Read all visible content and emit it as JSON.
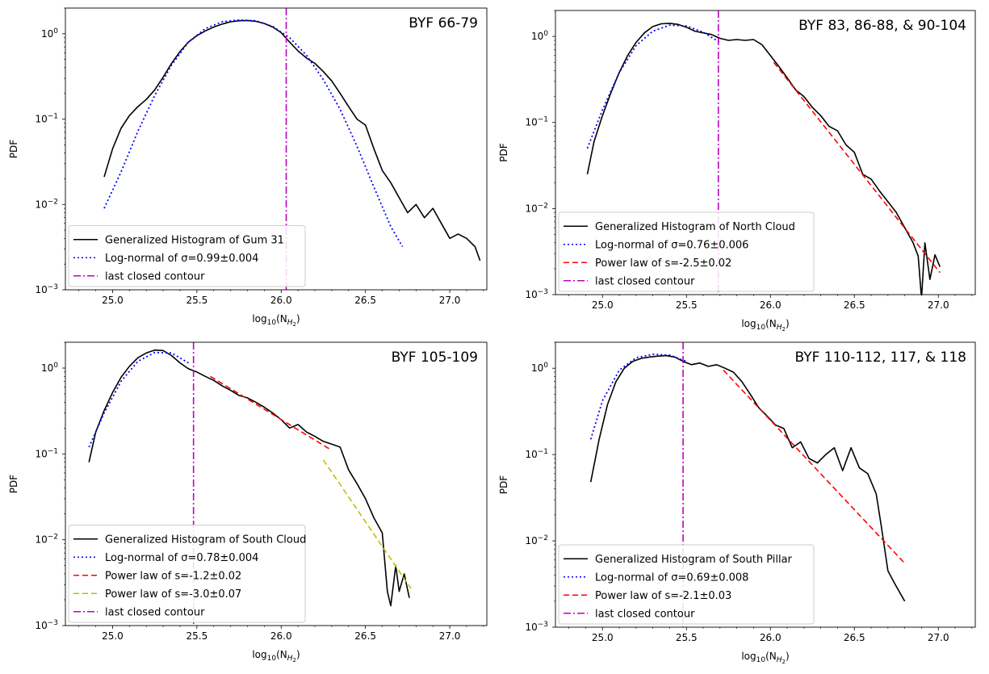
{
  "figure": {
    "colors": {
      "histogram": "#000000",
      "lognormal": "#0000ff",
      "powerlaw_red": "#ff0000",
      "powerlaw_yellow": "#bfbf00",
      "contour": "#bf00bf"
    }
  },
  "chart_data": [
    {
      "type": "line",
      "title": "BYF 66-79",
      "xlabel": "log10(NH2)",
      "ylabel": "PDF",
      "xlim": [
        24.72,
        27.22
      ],
      "ylim": [
        0.001,
        2.0
      ],
      "yscale": "log",
      "xticks": [
        25.0,
        25.5,
        26.0,
        26.5,
        27.0
      ],
      "xtick_labels": [
        "25.0",
        "25.5",
        "26.0",
        "26.5",
        "27.0"
      ],
      "yticks": [
        0.001,
        0.01,
        0.1,
        1
      ],
      "ytick_labels": [
        "10^-3",
        "10^-2",
        "10^-1",
        "10^0"
      ],
      "legend_position": "lower-left",
      "series": [
        {
          "name": "Generalized Histogram of Gum 31",
          "style": "solid",
          "color": "#000000",
          "x": [
            24.95,
            25.0,
            25.05,
            25.1,
            25.15,
            25.2,
            25.25,
            25.3,
            25.35,
            25.4,
            25.45,
            25.5,
            25.55,
            25.6,
            25.65,
            25.7,
            25.75,
            25.8,
            25.85,
            25.9,
            25.95,
            26.0,
            26.05,
            26.1,
            26.15,
            26.2,
            26.25,
            26.3,
            26.35,
            26.4,
            26.45,
            26.5,
            26.55,
            26.6,
            26.65,
            26.7,
            26.75,
            26.8,
            26.85,
            26.9,
            26.95,
            27.0,
            27.05,
            27.1,
            27.15,
            27.18
          ],
          "y": [
            0.021,
            0.045,
            0.078,
            0.11,
            0.14,
            0.17,
            0.22,
            0.31,
            0.45,
            0.62,
            0.8,
            0.95,
            1.08,
            1.2,
            1.3,
            1.38,
            1.42,
            1.43,
            1.4,
            1.32,
            1.2,
            1.03,
            0.8,
            0.63,
            0.52,
            0.45,
            0.36,
            0.28,
            0.2,
            0.14,
            0.1,
            0.085,
            0.045,
            0.025,
            0.018,
            0.012,
            0.008,
            0.01,
            0.007,
            0.009,
            0.006,
            0.004,
            0.0045,
            0.004,
            0.0032,
            0.0022
          ]
        },
        {
          "name": "Log-normal of σ=0.99±0.004",
          "style": "dotted",
          "color": "#0000ff",
          "x": [
            24.95,
            25.05,
            25.15,
            25.25,
            25.35,
            25.45,
            25.55,
            25.65,
            25.75,
            25.85,
            25.95,
            26.05,
            26.15,
            26.25,
            26.35,
            26.45,
            26.55,
            26.65,
            26.72
          ],
          "y": [
            0.009,
            0.024,
            0.072,
            0.19,
            0.43,
            0.8,
            1.15,
            1.38,
            1.45,
            1.42,
            1.22,
            0.9,
            0.56,
            0.29,
            0.13,
            0.048,
            0.016,
            0.0055,
            0.0032
          ]
        },
        {
          "name": "last closed contour",
          "style": "dashdot",
          "color": "#bf00bf",
          "x": [
            26.03,
            26.03
          ],
          "y": [
            0.001,
            2.0
          ]
        }
      ]
    },
    {
      "type": "line",
      "title": "BYF 83, 86-88, & 90-104",
      "xlabel": "log10(NH2)",
      "ylabel": "PDF",
      "xlim": [
        24.72,
        27.22
      ],
      "ylim": [
        0.001,
        2.0
      ],
      "yscale": "log",
      "xticks": [
        25.0,
        25.5,
        26.0,
        26.5,
        27.0
      ],
      "xtick_labels": [
        "25.0",
        "25.5",
        "26.0",
        "26.5",
        "27.0"
      ],
      "yticks": [
        0.001,
        0.01,
        0.1,
        1
      ],
      "ytick_labels": [
        "10^-3",
        "10^-2",
        "10^-1",
        "10^0"
      ],
      "legend_position": "lower-left",
      "series": [
        {
          "name": "Generalized Histogram of North Cloud",
          "style": "solid",
          "color": "#000000",
          "x": [
            24.91,
            24.95,
            25.0,
            25.05,
            25.1,
            25.15,
            25.2,
            25.25,
            25.3,
            25.35,
            25.4,
            25.45,
            25.5,
            25.55,
            25.6,
            25.65,
            25.7,
            25.75,
            25.8,
            25.85,
            25.9,
            25.95,
            26.0,
            26.05,
            26.1,
            26.15,
            26.2,
            26.25,
            26.3,
            26.35,
            26.4,
            26.45,
            26.5,
            26.55,
            26.6,
            26.65,
            26.7,
            26.75,
            26.8,
            26.85,
            26.88,
            26.9,
            26.92,
            26.95,
            26.98,
            27.01
          ],
          "y": [
            0.025,
            0.06,
            0.12,
            0.22,
            0.38,
            0.6,
            0.85,
            1.1,
            1.3,
            1.4,
            1.42,
            1.38,
            1.28,
            1.15,
            1.1,
            1.05,
            0.95,
            0.9,
            0.92,
            0.9,
            0.92,
            0.8,
            0.6,
            0.45,
            0.33,
            0.24,
            0.2,
            0.15,
            0.12,
            0.09,
            0.08,
            0.055,
            0.045,
            0.025,
            0.022,
            0.016,
            0.012,
            0.009,
            0.006,
            0.004,
            0.0028,
            0.0009,
            0.004,
            0.0015,
            0.0029,
            0.0021
          ]
        },
        {
          "name": "Log-normal of σ=0.76±0.006",
          "style": "dotted",
          "color": "#0000ff",
          "x": [
            24.91,
            25.0,
            25.1,
            25.2,
            25.3,
            25.4,
            25.5,
            25.6,
            25.7
          ],
          "y": [
            0.05,
            0.14,
            0.38,
            0.78,
            1.15,
            1.35,
            1.32,
            1.12,
            0.85
          ]
        },
        {
          "name": "Power law of s=-2.5±0.02",
          "style": "dashed",
          "color": "#ff0000",
          "x": [
            26.02,
            27.01
          ],
          "y": [
            0.5,
            0.0018
          ]
        },
        {
          "name": "last closed contour",
          "style": "dashdot",
          "color": "#bf00bf",
          "x": [
            25.69,
            25.69
          ],
          "y": [
            0.001,
            2.0
          ]
        }
      ]
    },
    {
      "type": "line",
      "title": "BYF 105-109",
      "xlabel": "log10(NH2)",
      "ylabel": "PDF",
      "xlim": [
        24.72,
        27.22
      ],
      "ylim": [
        0.001,
        2.0
      ],
      "yscale": "log",
      "xticks": [
        25.0,
        25.5,
        26.0,
        26.5,
        27.0
      ],
      "xtick_labels": [
        "25.0",
        "25.5",
        "26.0",
        "26.5",
        "27.0"
      ],
      "yticks": [
        0.001,
        0.01,
        0.1,
        1
      ],
      "ytick_labels": [
        "10^-3",
        "10^-2",
        "10^-1",
        "10^0"
      ],
      "legend_position": "lower-left",
      "series": [
        {
          "name": "Generalized Histogram of South Cloud",
          "style": "solid",
          "color": "#000000",
          "x": [
            24.86,
            24.9,
            24.95,
            25.0,
            25.05,
            25.1,
            25.15,
            25.2,
            25.25,
            25.3,
            25.35,
            25.4,
            25.45,
            25.5,
            25.55,
            25.6,
            25.65,
            25.7,
            25.75,
            25.8,
            25.85,
            25.9,
            25.95,
            26.0,
            26.05,
            26.1,
            26.15,
            26.2,
            26.25,
            26.3,
            26.35,
            26.4,
            26.45,
            26.5,
            26.55,
            26.6,
            26.63,
            26.65,
            26.68,
            26.7,
            26.73,
            26.76
          ],
          "y": [
            0.08,
            0.18,
            0.32,
            0.52,
            0.78,
            1.05,
            1.32,
            1.5,
            1.62,
            1.6,
            1.4,
            1.15,
            0.98,
            0.9,
            0.8,
            0.72,
            0.62,
            0.55,
            0.48,
            0.45,
            0.4,
            0.35,
            0.3,
            0.25,
            0.2,
            0.22,
            0.18,
            0.16,
            0.14,
            0.13,
            0.12,
            0.065,
            0.045,
            0.03,
            0.018,
            0.012,
            0.0025,
            0.0017,
            0.005,
            0.0025,
            0.004,
            0.0021
          ]
        },
        {
          "name": "Log-normal of σ=0.78±0.004",
          "style": "dotted",
          "color": "#0000ff",
          "x": [
            24.86,
            24.95,
            25.05,
            25.15,
            25.25,
            25.35,
            25.45
          ],
          "y": [
            0.12,
            0.3,
            0.7,
            1.2,
            1.52,
            1.5,
            1.15
          ]
        },
        {
          "name": "Power law of s=-1.2±0.02",
          "style": "dashed",
          "color": "#ff0000",
          "x": [
            25.58,
            26.3
          ],
          "y": [
            0.8,
            0.11
          ]
        },
        {
          "name": "Power law of s=-3.0±0.07",
          "style": "dashed",
          "color": "#bfbf00",
          "x": [
            26.25,
            26.77
          ],
          "y": [
            0.085,
            0.0027
          ]
        },
        {
          "name": "last closed contour",
          "style": "dashdot",
          "color": "#bf00bf",
          "x": [
            25.48,
            25.48
          ],
          "y": [
            0.001,
            2.0
          ]
        }
      ]
    },
    {
      "type": "line",
      "title": "BYF 110-112, 117, & 118",
      "xlabel": "log10(NH2)",
      "ylabel": "PDF",
      "xlim": [
        24.72,
        27.22
      ],
      "ylim": [
        0.001,
        2.0
      ],
      "yscale": "log",
      "xticks": [
        25.0,
        25.5,
        26.0,
        26.5,
        27.0
      ],
      "xtick_labels": [
        "25.0",
        "25.5",
        "26.0",
        "26.5",
        "27.0"
      ],
      "yticks": [
        0.001,
        0.01,
        0.1,
        1
      ],
      "ytick_labels": [
        "10^-3",
        "10^-2",
        "10^-1",
        "10^0"
      ],
      "legend_position": "lower-left",
      "series": [
        {
          "name": "Generalized Histogram of South Pillar",
          "style": "solid",
          "color": "#000000",
          "x": [
            24.93,
            24.98,
            25.03,
            25.08,
            25.13,
            25.18,
            25.23,
            25.28,
            25.33,
            25.38,
            25.43,
            25.48,
            25.53,
            25.58,
            25.63,
            25.68,
            25.73,
            25.78,
            25.83,
            25.88,
            25.93,
            25.98,
            26.03,
            26.08,
            26.13,
            26.18,
            26.23,
            26.28,
            26.33,
            26.38,
            26.43,
            26.48,
            26.53,
            26.58,
            26.63,
            26.66,
            26.7,
            26.74,
            26.8
          ],
          "y": [
            0.048,
            0.15,
            0.38,
            0.7,
            1.0,
            1.2,
            1.3,
            1.35,
            1.38,
            1.4,
            1.35,
            1.2,
            1.1,
            1.15,
            1.05,
            1.1,
            1.0,
            0.9,
            0.7,
            0.5,
            0.35,
            0.28,
            0.22,
            0.2,
            0.12,
            0.14,
            0.09,
            0.08,
            0.1,
            0.12,
            0.065,
            0.12,
            0.07,
            0.06,
            0.035,
            0.015,
            0.0045,
            0.0032,
            0.002
          ]
        },
        {
          "name": "Log-normal of σ=0.69±0.008",
          "style": "dotted",
          "color": "#0000ff",
          "x": [
            24.93,
            25.0,
            25.1,
            25.2,
            25.3,
            25.4,
            25.5
          ],
          "y": [
            0.15,
            0.42,
            0.95,
            1.32,
            1.45,
            1.42,
            1.2
          ]
        },
        {
          "name": "Power law of s=-2.1±0.03",
          "style": "dashed",
          "color": "#ff0000",
          "x": [
            25.72,
            26.8
          ],
          "y": [
            0.95,
            0.0055
          ]
        },
        {
          "name": "last closed contour",
          "style": "dashdot",
          "color": "#bf00bf",
          "x": [
            25.48,
            25.48
          ],
          "y": [
            0.001,
            2.0
          ]
        }
      ]
    }
  ]
}
